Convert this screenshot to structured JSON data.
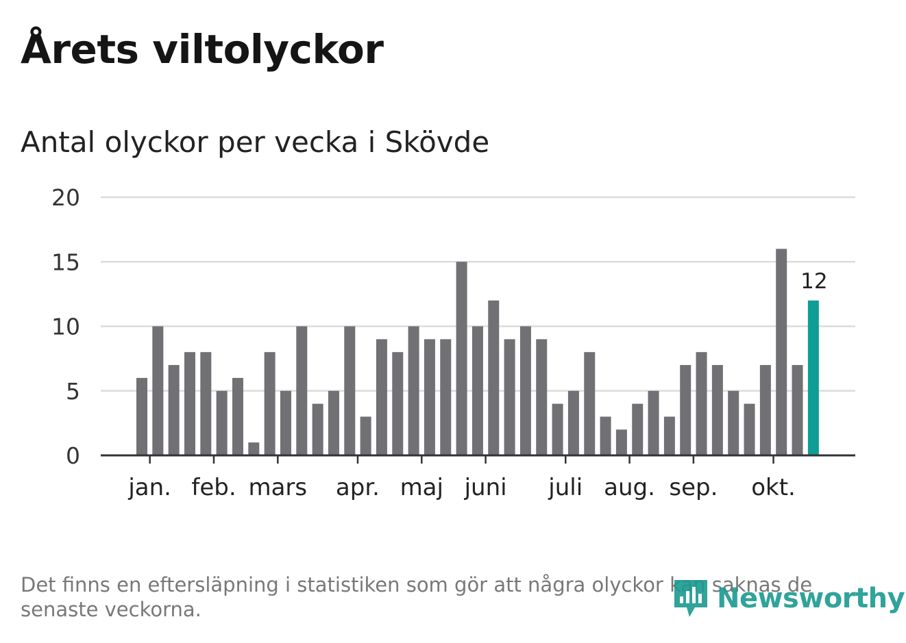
{
  "header": {
    "title": "Årets viltolyckor",
    "subtitle": "Antal olyckor per vecka i Skövde"
  },
  "footer": {
    "note": "Det finns en eftersläpning i statistiken som gör att några olyckor kan saknas de senaste veckorna.",
    "logo_text": "Newsworthy",
    "logo_icon": "chart-bubble-icon"
  },
  "colors": {
    "bar": "#707075",
    "highlight": "#0e9e96",
    "grid": "#dcdcdc",
    "axis": "#333333",
    "logo": "#1a9a90"
  },
  "chart_data": {
    "type": "bar",
    "title": "Antal olyckor per vecka i Skövde",
    "xlabel": "",
    "ylabel": "",
    "ylim": [
      0,
      20
    ],
    "yticks": [
      0,
      5,
      10,
      15,
      20
    ],
    "grid": true,
    "x_tick_labels": [
      {
        "label": "jan.",
        "week_index": 0.5
      },
      {
        "label": "feb.",
        "week_index": 4.5
      },
      {
        "label": "mars",
        "week_index": 8.5
      },
      {
        "label": "apr.",
        "week_index": 13.5
      },
      {
        "label": "maj",
        "week_index": 17.5
      },
      {
        "label": "juni",
        "week_index": 21.5
      },
      {
        "label": "juli",
        "week_index": 26.5
      },
      {
        "label": "aug.",
        "week_index": 30.5
      },
      {
        "label": "sep.",
        "week_index": 34.5
      },
      {
        "label": "okt.",
        "week_index": 39.5
      }
    ],
    "values": [
      6,
      10,
      7,
      8,
      8,
      5,
      6,
      1,
      8,
      5,
      10,
      4,
      5,
      10,
      3,
      9,
      8,
      10,
      9,
      9,
      15,
      10,
      12,
      9,
      10,
      9,
      4,
      5,
      8,
      3,
      2,
      4,
      5,
      3,
      7,
      8,
      7,
      5,
      4,
      7,
      16,
      7,
      12
    ],
    "highlight_last": true,
    "annotation": "12"
  }
}
